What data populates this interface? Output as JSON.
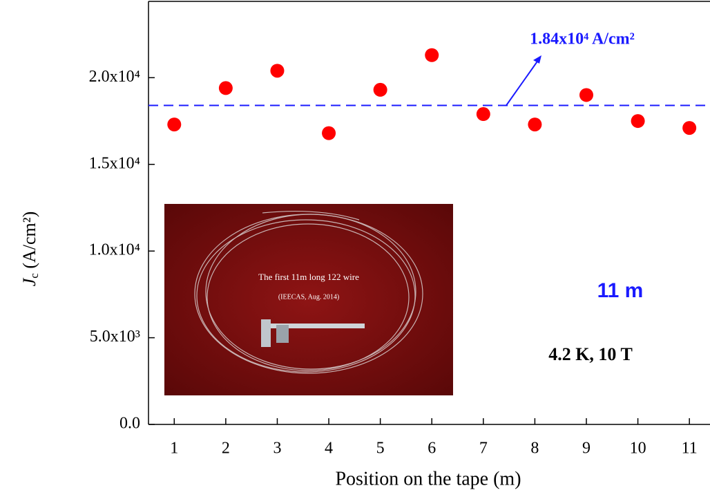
{
  "chart_data": {
    "type": "scatter",
    "x_label": "Position on the tape (m)",
    "y_label": {
      "symbol": "J",
      "subscript": "c",
      "unit": " (A/cm²)"
    },
    "x": [
      1,
      2,
      3,
      4,
      5,
      6,
      7,
      8,
      9,
      10,
      11
    ],
    "series": [
      {
        "color": "#ff0000",
        "values": [
          17300,
          19400,
          20400,
          16800,
          19300,
          21300,
          17900,
          17300,
          19000,
          17500,
          17100
        ]
      }
    ],
    "xlim": [
      0.5,
      11.4
    ],
    "xticks": [
      1,
      2,
      3,
      4,
      5,
      6,
      7,
      8,
      9,
      10,
      11
    ],
    "ylim": [
      0,
      24400
    ],
    "yticks": [
      {
        "value": 0,
        "label": "0.0"
      },
      {
        "value": 5000,
        "label": "5.0x10³"
      },
      {
        "value": 10000,
        "label": "1.0x10⁴"
      },
      {
        "value": 15000,
        "label": "1.5x10⁴"
      },
      {
        "value": 20000,
        "label": "2.0x10⁴"
      }
    ],
    "reference_line": {
      "value": 18400,
      "label": "1.84x10⁴ A/cm²",
      "color": "#1a1aff"
    },
    "annotations": [
      "11 m",
      "4.2 K, 10 T"
    ],
    "inset_photo": {
      "caption": "The first 11m long 122 wire",
      "credit": "(IEECAS, Aug. 2014)"
    }
  }
}
